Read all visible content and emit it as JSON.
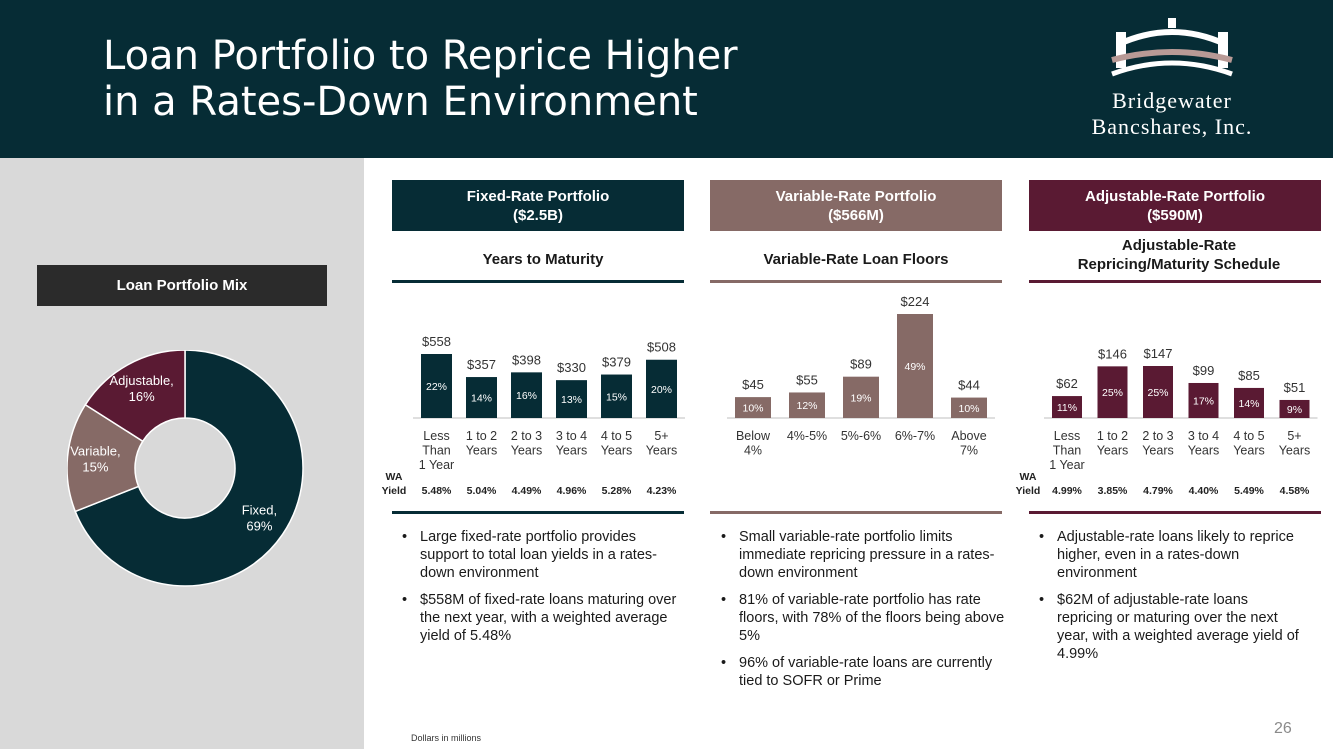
{
  "header": {
    "title_line1": "Loan Portfolio to Reprice Higher",
    "title_line2": "in a Rates-Down Environment",
    "logo_line1": "Bridgewater",
    "logo_line2": "Bancshares, Inc."
  },
  "colors": {
    "dark": "#062c35",
    "variable": "#866a66",
    "adjustable": "#5a1a33",
    "panel": "#d9d9d9"
  },
  "mix": {
    "label": "Loan Portfolio Mix",
    "chart_data": {
      "type": "pie",
      "title": "Loan Portfolio Mix",
      "slices": [
        {
          "name": "Fixed",
          "value": 69,
          "label": "69%",
          "color": "#062c35"
        },
        {
          "name": "Variable",
          "value": 15,
          "label": "15%",
          "color": "#866a66"
        },
        {
          "name": "Adjustable",
          "value": 16,
          "label": "16%",
          "color": "#5a1a33"
        }
      ]
    }
  },
  "columns": {
    "fixed": {
      "head_line1": "Fixed-Rate Portfolio",
      "head_line2": "($2.5B)",
      "subtitle": "Years to Maturity",
      "bullets": [
        "Large fixed-rate portfolio provides support to total loan yields in a rates-down environment",
        "$558M of fixed-rate loans maturing over the next year, with a weighted average yield of 5.48%"
      ]
    },
    "variable": {
      "head_line1": "Variable-Rate Portfolio",
      "head_line2": "($566M)",
      "subtitle": "Variable-Rate Loan Floors",
      "bullets": [
        "Small variable-rate portfolio limits immediate repricing pressure in a rates-down environment",
        "81% of variable-rate portfolio has rate floors, with 78% of the floors being above 5%",
        "96% of variable-rate loans are currently tied to SOFR or Prime"
      ]
    },
    "adjustable": {
      "head_line1": "Adjustable-Rate Portfolio",
      "head_line2": "($590M)",
      "subtitle_line1": "Adjustable-Rate",
      "subtitle_line2": "Repricing/Maturity Schedule",
      "bullets": [
        "Adjustable-rate loans likely to reprice higher, even in a rates-down environment",
        "$62M of adjustable-rate loans repricing or maturing over the next year, with a weighted average yield of 4.99%"
      ]
    }
  },
  "wa_label": [
    "WA",
    "Yield"
  ],
  "chart_data": [
    {
      "id": "fixed",
      "type": "bar",
      "title": "Years to Maturity",
      "categories": [
        [
          "Less",
          "Than",
          "1 Year"
        ],
        [
          "1 to 2",
          "Years"
        ],
        [
          "2 to 3",
          "Years"
        ],
        [
          "3 to 4",
          "Years"
        ],
        [
          "4 to 5",
          "Years"
        ],
        [
          "5+",
          "Years"
        ]
      ],
      "values": [
        558,
        357,
        398,
        330,
        379,
        508
      ],
      "value_labels": [
        "$558",
        "$357",
        "$398",
        "$330",
        "$379",
        "$508"
      ],
      "pct_labels": [
        "22%",
        "14%",
        "16%",
        "13%",
        "15%",
        "20%"
      ],
      "yields": [
        "5.48%",
        "5.04%",
        "4.49%",
        "4.96%",
        "5.28%",
        "4.23%"
      ],
      "color": "#062c35"
    },
    {
      "id": "variable",
      "type": "bar",
      "title": "Variable-Rate Loan Floors",
      "categories": [
        [
          "Below",
          "4%"
        ],
        [
          "4%-5%"
        ],
        [
          "5%-6%"
        ],
        [
          "6%-7%"
        ],
        [
          "Above",
          "7%"
        ]
      ],
      "values": [
        45,
        55,
        89,
        224,
        44
      ],
      "value_labels": [
        "$45",
        "$55",
        "$89",
        "$224",
        "$44"
      ],
      "pct_labels": [
        "10%",
        "12%",
        "19%",
        "49%",
        "10%"
      ],
      "color": "#866a66"
    },
    {
      "id": "adjustable",
      "type": "bar",
      "title": "Adjustable-Rate Repricing/Maturity Schedule",
      "categories": [
        [
          "Less",
          "Than",
          "1 Year"
        ],
        [
          "1 to 2",
          "Years"
        ],
        [
          "2 to 3",
          "Years"
        ],
        [
          "3 to 4",
          "Years"
        ],
        [
          "4 to 5",
          "Years"
        ],
        [
          "5+",
          "Years"
        ]
      ],
      "values": [
        62,
        146,
        147,
        99,
        85,
        51
      ],
      "value_labels": [
        "$62",
        "$146",
        "$147",
        "$99",
        "$85",
        "$51"
      ],
      "pct_labels": [
        "11%",
        "25%",
        "25%",
        "17%",
        "14%",
        "9%"
      ],
      "yields": [
        "4.99%",
        "3.85%",
        "4.79%",
        "4.40%",
        "5.49%",
        "4.58%"
      ],
      "color": "#5a1a33"
    }
  ],
  "footnote": "Dollars in millions",
  "page_number": "26"
}
